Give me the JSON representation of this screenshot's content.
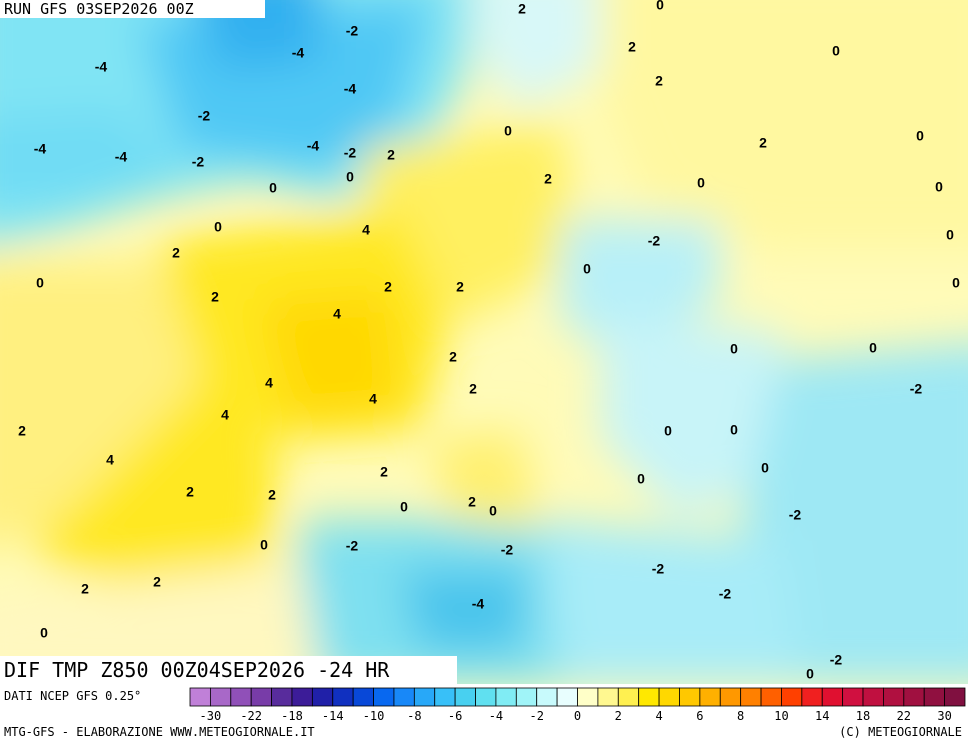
{
  "header": {
    "run": "RUN GFS 03SEP2026 00Z"
  },
  "map": {
    "title": "DIF TMP Z850 00Z04SEP2026 -24 HR",
    "contour_labels": [
      "-2",
      "-4",
      "-4",
      "-4",
      "-2",
      "-4",
      "-4",
      "-2",
      "-4",
      "-2",
      "2",
      "0",
      "0",
      "0",
      "2",
      "0",
      "2",
      "4",
      "2",
      "4",
      "2",
      "2",
      "0",
      "2",
      "2",
      "0",
      "2",
      "0",
      "0",
      "2",
      "0",
      "0",
      "-2",
      "0",
      "0",
      "0",
      "0",
      "0",
      "2",
      "2",
      "4",
      "4",
      "4",
      "2",
      "4",
      "2",
      "2",
      "2",
      "0",
      "2",
      "0",
      "0",
      "0",
      "0",
      "0",
      "-2",
      "-2",
      "-2",
      "-2",
      "0",
      "-2",
      "-2",
      "-4",
      "2",
      "2",
      "0",
      "-2",
      "0"
    ]
  },
  "legend": {
    "source": "DATI NCEP GFS 0.25°",
    "colors": [
      "#c080d8",
      "#a868c8",
      "#9050b8",
      "#783ca8",
      "#582c9c",
      "#3c1c98",
      "#2020a8",
      "#1030c0",
      "#0848d8",
      "#0868f0",
      "#1888f8",
      "#28a8f8",
      "#38c0f8",
      "#48d0f0",
      "#60e0f0",
      "#80ecf4",
      "#a0f4f8",
      "#c8fafc",
      "#e8fefe",
      "#ffffc8",
      "#fff890",
      "#fff050",
      "#ffe800",
      "#ffd800",
      "#ffc800",
      "#ffb000",
      "#ff9800",
      "#ff8000",
      "#ff6000",
      "#ff4000",
      "#f02020",
      "#e01030",
      "#d01040",
      "#c01040",
      "#b01040",
      "#a01040",
      "#901040",
      "#801040"
    ],
    "labels": [
      "-30",
      "-22",
      "-18",
      "-14",
      "-10",
      "-8",
      "-6",
      "-4",
      "-2",
      "0",
      "2",
      "4",
      "6",
      "8",
      "10",
      "14",
      "18",
      "22",
      "30"
    ]
  },
  "footer": {
    "left": "MTG-GFS - ELABORAZIONE WWW.METEOGIORNALE.IT",
    "right": "(C) METEOGIORNALE"
  }
}
